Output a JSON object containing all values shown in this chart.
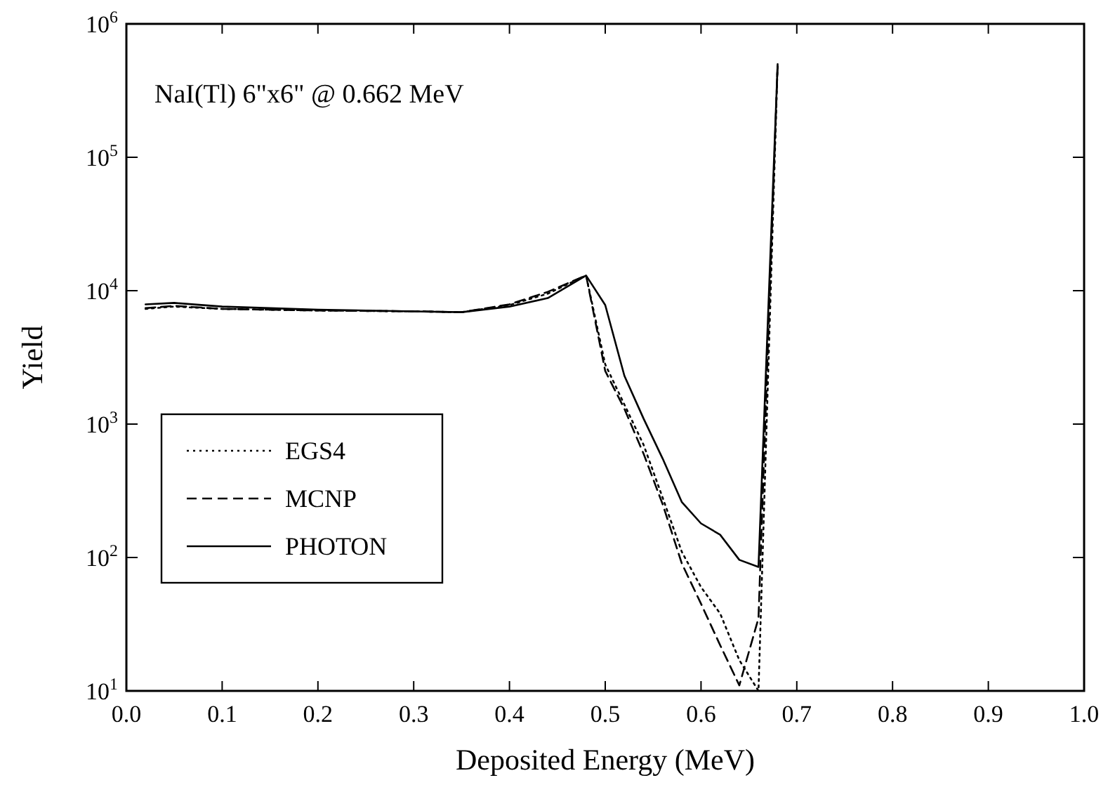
{
  "chart_data": {
    "type": "line",
    "xlabel": "Deposited Energy (MeV)",
    "ylabel": "Yield",
    "log": "y",
    "grid": false,
    "legend": "left",
    "xlim": [
      0,
      1
    ],
    "xticks": [
      {
        "value": 0,
        "label": "0.0"
      },
      {
        "value": 0.1,
        "label": "0.1"
      },
      {
        "value": 0.2,
        "label": "0.2"
      },
      {
        "value": 0.3,
        "label": "0.3"
      },
      {
        "value": 0.4,
        "label": "0.4"
      },
      {
        "value": 0.5,
        "label": "0.5"
      },
      {
        "value": 0.6,
        "label": "0.6"
      },
      {
        "value": 0.7,
        "label": "0.7"
      },
      {
        "value": 0.8,
        "label": "0.8"
      },
      {
        "value": 0.9,
        "label": "0.9"
      },
      {
        "value": 1,
        "label": "1.0"
      }
    ],
    "ylim": [
      10,
      1000000
    ],
    "yticks": [
      {
        "value": 10,
        "label": "10$^{1}$"
      },
      {
        "value": 100,
        "label": "10$^{2}$"
      },
      {
        "value": 1000,
        "label": "10$^{3}$"
      },
      {
        "value": 10000,
        "label": "10$^{4}$"
      },
      {
        "value": 100000,
        "label": "10$^{5}$"
      },
      {
        "value": 1000000,
        "label": "10$^{6}$"
      }
    ],
    "x": [
      0.02,
      0.05,
      0.1,
      0.2,
      0.3,
      0.35,
      0.4,
      0.44,
      0.48,
      0.5,
      0.52,
      0.54,
      0.56,
      0.58,
      0.6,
      0.62,
      0.64,
      0.66,
      0.68
    ],
    "annotations": [
      "NaI(Tl) 6\"x6\" @ 0.662 MeV"
    ],
    "series": [
      {
        "name": "EGS4",
        "color": "#000000",
        "line_style": "dotted",
        "values": [
          7300,
          7600,
          7300,
          7100,
          7000,
          6900,
          7800,
          9500,
          13000,
          2800,
          1400,
          700,
          280,
          110,
          60,
          38,
          17,
          10,
          500000
        ]
      },
      {
        "name": "MCNP",
        "color": "#000000",
        "line_style": "dashed",
        "values": [
          7400,
          7700,
          7300,
          7100,
          7000,
          6900,
          7900,
          9800,
          13000,
          2500,
          1300,
          600,
          250,
          90,
          45,
          22,
          11,
          35,
          500000
        ]
      },
      {
        "name": "PHOTON",
        "color": "#000000",
        "line_style": "solid",
        "values": [
          7900,
          8100,
          7600,
          7200,
          7000,
          6900,
          7600,
          8800,
          13000,
          7800,
          2300,
          1100,
          550,
          260,
          180,
          148,
          96,
          85,
          500000
        ]
      }
    ]
  }
}
